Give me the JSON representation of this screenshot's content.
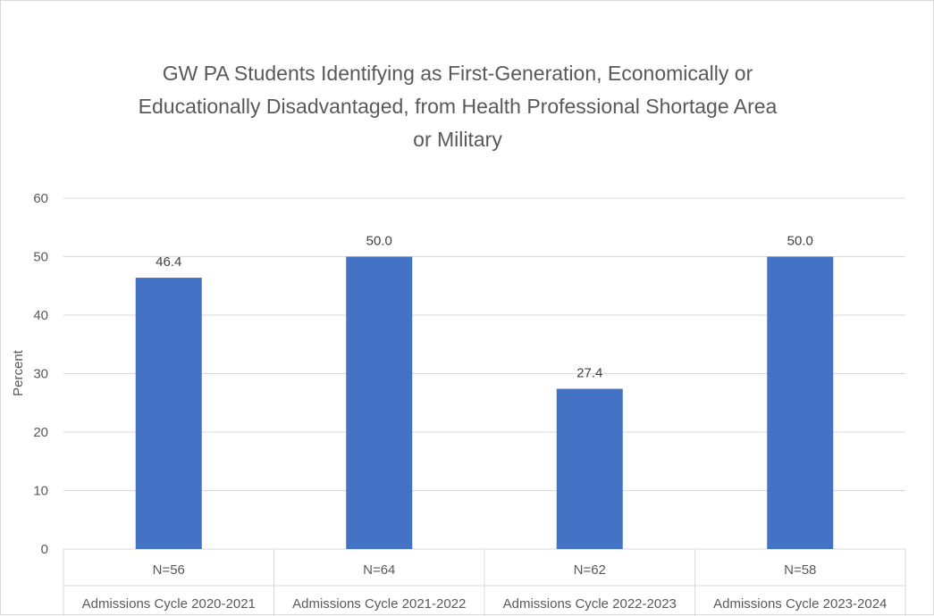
{
  "chart_data": {
    "type": "bar",
    "title_lines": [
      "GW PA Students Identifying as First-Generation, Economically or",
      "Educationally Disadvantaged, from Health Professional Shortage Area",
      "or Military"
    ],
    "ylabel": "Percent",
    "xlabel": "",
    "ylim": [
      0,
      60
    ],
    "yticks": [
      "0",
      "10",
      "20",
      "30",
      "40",
      "50",
      "60"
    ],
    "categories": [
      "Admissions Cycle 2020-2021",
      "Admissions Cycle 2021-2022",
      "Admissions Cycle 2022-2023",
      "Admissions Cycle 2023-2024"
    ],
    "sublabels": [
      "N=56",
      "N=64",
      "N=62",
      "N=58"
    ],
    "values": [
      46.4,
      50.0,
      27.4,
      50.0
    ],
    "data_labels": [
      "46.4",
      "50.0",
      "27.4",
      "50.0"
    ],
    "bar_color": "#4472c4",
    "grid": true,
    "legend": "none"
  }
}
